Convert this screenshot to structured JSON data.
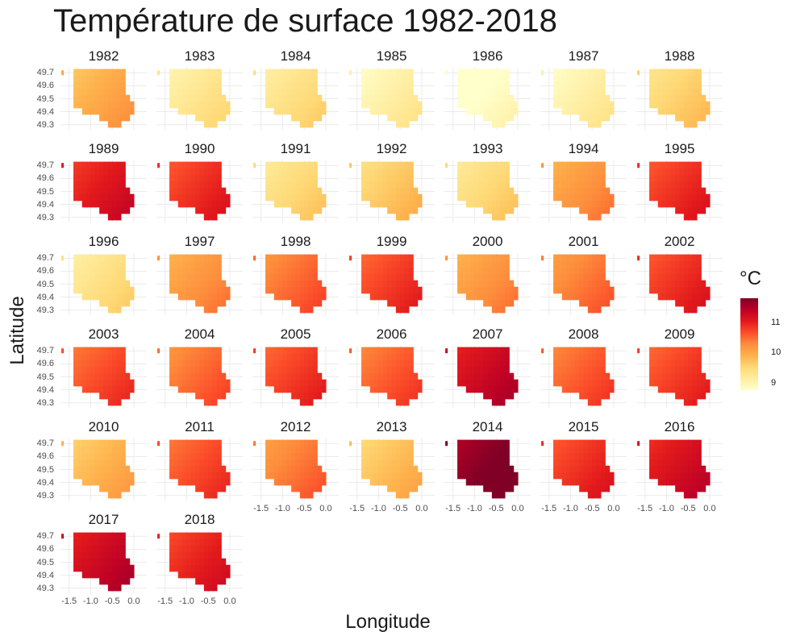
{
  "chart_data": {
    "type": "heatmap",
    "title": "Température de surface 1982-2018",
    "xlabel": "Longitude",
    "ylabel": "Latitude",
    "xlim": [
      -1.7,
      0.3
    ],
    "ylim": [
      49.26,
      49.74
    ],
    "x_ticks": [
      "-1.5",
      "-1.0",
      "-0.5",
      "0.0"
    ],
    "y_ticks": [
      "49.7",
      "49.6",
      "49.5",
      "49.4",
      "49.3"
    ],
    "legend": {
      "title": "°C",
      "ticks": [
        "11",
        "10",
        "9"
      ],
      "range": [
        8.75,
        11.8
      ],
      "colors": [
        "#ffffcc",
        "#ffeda0",
        "#fed976",
        "#feb24c",
        "#fd8d3c",
        "#fc4e2a",
        "#e31a1c",
        "#bd0026",
        "#800026"
      ]
    },
    "panels": [
      {
        "year": "1982",
        "mean": 10.0
      },
      {
        "year": "1983",
        "mean": 9.3
      },
      {
        "year": "1984",
        "mean": 9.4
      },
      {
        "year": "1985",
        "mean": 9.1
      },
      {
        "year": "1986",
        "mean": 8.8
      },
      {
        "year": "1987",
        "mean": 9.1
      },
      {
        "year": "1988",
        "mean": 9.6
      },
      {
        "year": "1989",
        "mean": 11.1
      },
      {
        "year": "1990",
        "mean": 10.9
      },
      {
        "year": "1991",
        "mean": 9.5
      },
      {
        "year": "1992",
        "mean": 9.7
      },
      {
        "year": "1993",
        "mean": 9.5
      },
      {
        "year": "1994",
        "mean": 10.2
      },
      {
        "year": "1995",
        "mean": 10.9
      },
      {
        "year": "1996",
        "mean": 9.4
      },
      {
        "year": "1997",
        "mean": 10.2
      },
      {
        "year": "1998",
        "mean": 10.5
      },
      {
        "year": "1999",
        "mean": 10.8
      },
      {
        "year": "2000",
        "mean": 10.2
      },
      {
        "year": "2001",
        "mean": 10.4
      },
      {
        "year": "2002",
        "mean": 10.9
      },
      {
        "year": "2003",
        "mean": 10.7
      },
      {
        "year": "2004",
        "mean": 10.5
      },
      {
        "year": "2005",
        "mean": 10.8
      },
      {
        "year": "2006",
        "mean": 10.6
      },
      {
        "year": "2007",
        "mean": 11.3
      },
      {
        "year": "2008",
        "mean": 10.6
      },
      {
        "year": "2009",
        "mean": 10.8
      },
      {
        "year": "2010",
        "mean": 9.9
      },
      {
        "year": "2011",
        "mean": 10.7
      },
      {
        "year": "2012",
        "mean": 10.4
      },
      {
        "year": "2013",
        "mean": 9.8
      },
      {
        "year": "2014",
        "mean": 11.8
      },
      {
        "year": "2015",
        "mean": 10.9
      },
      {
        "year": "2016",
        "mean": 11.2
      },
      {
        "year": "2017",
        "mean": 11.3
      },
      {
        "year": "2018",
        "mean": 11.0
      }
    ]
  }
}
